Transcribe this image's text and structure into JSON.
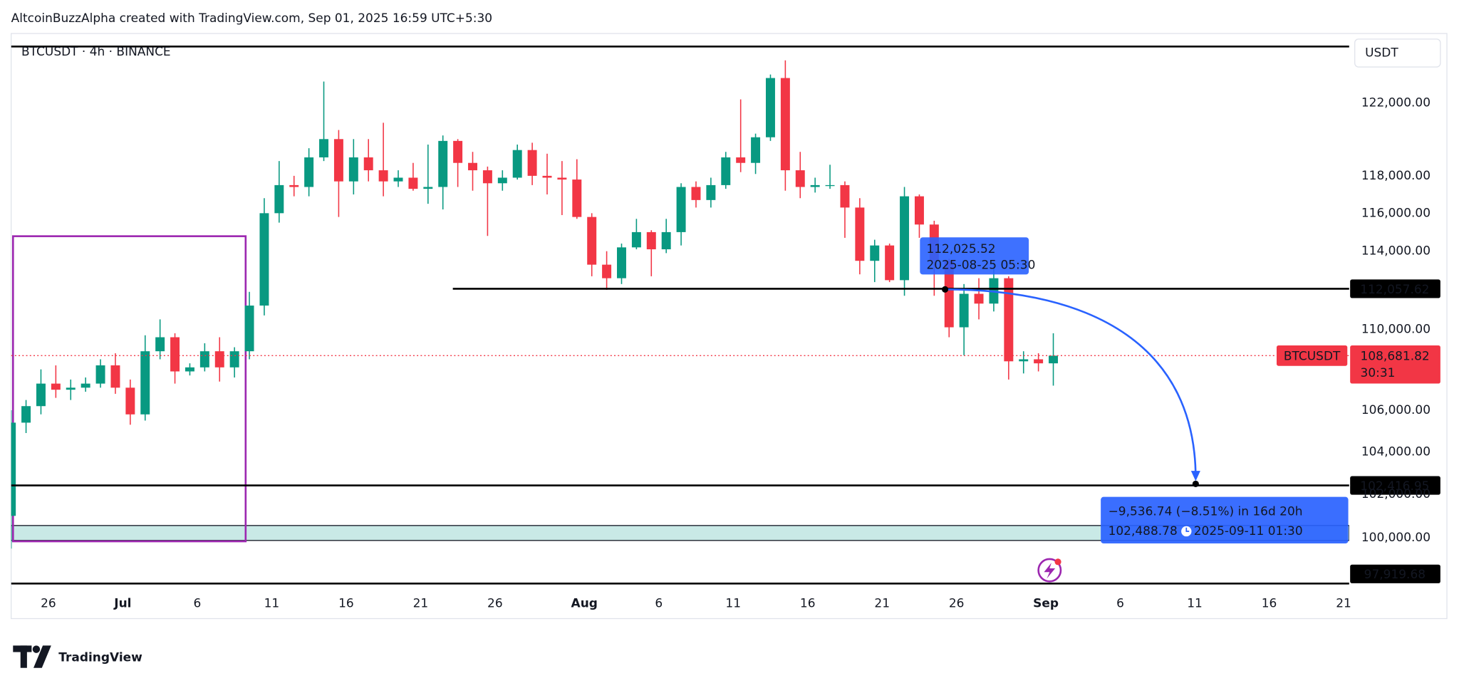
{
  "header": "AltcoinBuzzAlpha created with TradingView.com, Sep 01, 2025 16:59 UTC+5:30",
  "logo": "TradingView",
  "chart_data": {
    "type": "candlestick",
    "symbol_label": "BTCUSDT · 4h · BINANCE",
    "currency": "USDT",
    "log_scale": true,
    "grid": false,
    "up_color": "#089981",
    "down_color": "#f23645",
    "xlim": [
      "2025-06-23 12:00",
      "2025-09-21 09:00"
    ],
    "ylim": [
      97560,
      125940
    ],
    "xticks": [
      {
        "value": "2025-06-26",
        "label": "26"
      },
      {
        "value": "2025-07-01",
        "label": "Jul"
      },
      {
        "value": "2025-07-06",
        "label": "6"
      },
      {
        "value": "2025-07-11",
        "label": "11"
      },
      {
        "value": "2025-07-16",
        "label": "16"
      },
      {
        "value": "2025-07-21",
        "label": "21"
      },
      {
        "value": "2025-07-26",
        "label": "26"
      },
      {
        "value": "2025-08-01",
        "label": "Aug"
      },
      {
        "value": "2025-08-06",
        "label": "6"
      },
      {
        "value": "2025-08-11",
        "label": "11"
      },
      {
        "value": "2025-08-16",
        "label": "16"
      },
      {
        "value": "2025-08-21",
        "label": "21"
      },
      {
        "value": "2025-08-26",
        "label": "26"
      },
      {
        "value": "2025-09-01",
        "label": "Sep"
      },
      {
        "value": "2025-09-06",
        "label": "6"
      },
      {
        "value": "2025-09-11",
        "label": "11"
      },
      {
        "value": "2025-09-16",
        "label": "16"
      },
      {
        "value": "2025-09-21",
        "label": "21"
      }
    ],
    "yticks": [
      {
        "value": 100000,
        "label": "100,000.00"
      },
      {
        "value": 102000,
        "label": "102,000.00"
      },
      {
        "value": 104000,
        "label": "104,000.00"
      },
      {
        "value": 106000,
        "label": "106,000.00"
      },
      {
        "value": 110000,
        "label": "110,000.00"
      },
      {
        "value": 114000,
        "label": "114,000.00"
      },
      {
        "value": 116000,
        "label": "116,000.00"
      },
      {
        "value": 118000,
        "label": "118,000.00"
      },
      {
        "value": 122000,
        "label": "122,000.00"
      }
    ],
    "candles": {
      "x": [
        "2025-06-23",
        "2025-06-24",
        "2025-06-25",
        "2025-06-26",
        "2025-06-27",
        "2025-06-28",
        "2025-06-29",
        "2025-06-30",
        "2025-07-01",
        "2025-07-02",
        "2025-07-03",
        "2025-07-04",
        "2025-07-05",
        "2025-07-06",
        "2025-07-07",
        "2025-07-08",
        "2025-07-09",
        "2025-07-10",
        "2025-07-11",
        "2025-07-12",
        "2025-07-13",
        "2025-07-14",
        "2025-07-15",
        "2025-07-16",
        "2025-07-17",
        "2025-07-18",
        "2025-07-19",
        "2025-07-20",
        "2025-07-21",
        "2025-07-22",
        "2025-07-23",
        "2025-07-24",
        "2025-07-25",
        "2025-07-26",
        "2025-07-27",
        "2025-07-28",
        "2025-07-29",
        "2025-07-30",
        "2025-07-31",
        "2025-08-01",
        "2025-08-02",
        "2025-08-03",
        "2025-08-04",
        "2025-08-05",
        "2025-08-06",
        "2025-08-07",
        "2025-08-08",
        "2025-08-09",
        "2025-08-10",
        "2025-08-11",
        "2025-08-12",
        "2025-08-13",
        "2025-08-14",
        "2025-08-15",
        "2025-08-16",
        "2025-08-17",
        "2025-08-18",
        "2025-08-19",
        "2025-08-20",
        "2025-08-21",
        "2025-08-22",
        "2025-08-23",
        "2025-08-24",
        "2025-08-25",
        "2025-08-26",
        "2025-08-27",
        "2025-08-28",
        "2025-08-29",
        "2025-08-30",
        "2025-08-31",
        "2025-09-01"
      ],
      "open": [
        101000,
        105400,
        106200,
        107300,
        107000,
        107100,
        107300,
        108200,
        107100,
        105800,
        108900,
        109600,
        107900,
        108100,
        108900,
        108100,
        108900,
        111200,
        116000,
        117500,
        117400,
        119000,
        120000,
        117700,
        119000,
        118300,
        117700,
        117900,
        117300,
        117400,
        119900,
        118700,
        118300,
        117600,
        117900,
        119400,
        118000,
        117900,
        117800,
        115800,
        113300,
        112600,
        114200,
        115000,
        114100,
        115000,
        117400,
        116700,
        117500,
        119000,
        118700,
        120100,
        123400,
        118300,
        117400,
        117500,
        117500,
        116300,
        113500,
        114300,
        112500,
        116900,
        115400,
        113500,
        110100,
        111800,
        111300,
        112600,
        108400,
        108500,
        108300
      ],
      "high": [
        106000,
        106500,
        108000,
        108200,
        107500,
        107600,
        108500,
        108800,
        107500,
        109700,
        110500,
        109800,
        108300,
        109300,
        109600,
        109100,
        111900,
        116800,
        118800,
        118000,
        119500,
        123200,
        120500,
        120000,
        120000,
        120900,
        118300,
        118700,
        119700,
        120200,
        120000,
        119300,
        118500,
        118300,
        119700,
        119800,
        119200,
        118800,
        118900,
        116000,
        114000,
        114400,
        115700,
        115100,
        115700,
        117600,
        117700,
        117900,
        119300,
        122200,
        120300,
        123600,
        124400,
        119300,
        117900,
        118600,
        117700,
        116800,
        114600,
        114400,
        117400,
        117000,
        115600,
        113600,
        112300,
        112600,
        113400,
        112700,
        108900,
        108800,
        109800
      ],
      "low": [
        99500,
        104900,
        105800,
        106600,
        106500,
        106900,
        107100,
        106800,
        105300,
        105500,
        108500,
        107300,
        107700,
        107900,
        107400,
        107600,
        108500,
        110700,
        115500,
        116900,
        116900,
        118800,
        115800,
        117000,
        117700,
        116900,
        117400,
        117200,
        116500,
        116200,
        117400,
        117200,
        114800,
        117200,
        117800,
        117500,
        117000,
        115900,
        115700,
        112700,
        112000,
        112300,
        114100,
        112700,
        113900,
        114300,
        116300,
        116300,
        117300,
        118200,
        118100,
        119900,
        117200,
        116800,
        117100,
        117300,
        114700,
        112800,
        112400,
        112400,
        111700,
        114700,
        111700,
        109600,
        108700,
        110500,
        110900,
        107500,
        107800,
        107900,
        107200
      ],
      "close": [
        105400,
        106200,
        107300,
        107000,
        107100,
        107300,
        108200,
        107100,
        105800,
        108900,
        109600,
        107900,
        108100,
        108900,
        108100,
        108900,
        111200,
        116000,
        117500,
        117400,
        119000,
        120000,
        117700,
        119000,
        118300,
        117700,
        117900,
        117300,
        117400,
        119900,
        118700,
        118300,
        117600,
        117900,
        119400,
        118000,
        117900,
        117800,
        115800,
        113300,
        112600,
        114200,
        115000,
        114100,
        115000,
        117400,
        116700,
        117500,
        119000,
        118700,
        120100,
        123400,
        118300,
        117400,
        117500,
        117500,
        116300,
        113500,
        114300,
        112500,
        116900,
        115400,
        113500,
        110100,
        111800,
        111300,
        112600,
        108400,
        108500,
        108300,
        108680
      ]
    },
    "horizontal_lines": [
      {
        "value": 125190
      },
      {
        "value": 112057.62,
        "label": "112,057.62",
        "start": "2025-07-23 04:00"
      },
      {
        "value": 102416.95,
        "label": "102,416.95"
      },
      {
        "value": 97919.68,
        "label": "97,919.68"
      }
    ],
    "rectangle": {
      "start": "2025-06-23 12:00",
      "end": "2025-07-09 03:00",
      "top": 114785,
      "bottom": 99830,
      "color": "#9c27b0"
    },
    "zone": {
      "top": 100555,
      "bottom": 99870,
      "color": "#b2dfdb"
    },
    "current_price": {
      "value": 108681.82,
      "label": "108,681.82",
      "countdown": "30:31",
      "symbol": "BTCUSDT",
      "color": "#f23645"
    },
    "projection": {
      "color": "#2962ff",
      "start": {
        "value": 112025.52,
        "label": "112,025.52",
        "time": "2025-08-25 05:30"
      },
      "end": {
        "value": 102488.78,
        "label": "102,488.78",
        "time": "2025-09-11 01:30"
      },
      "change_label": "−9,536.74 (−8.51%) in 16d 20h"
    }
  }
}
